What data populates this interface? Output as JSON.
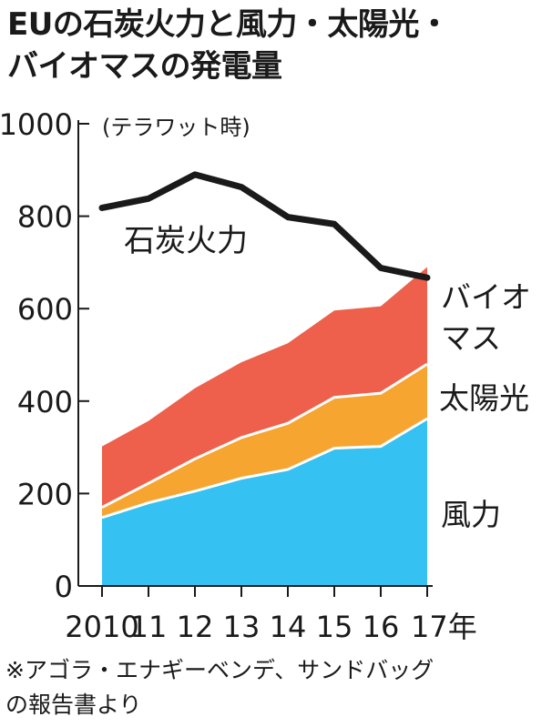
{
  "title_lines": [
    "EUの石炭火力と風力・太陽光・",
    "バイオマスの発電量"
  ],
  "source_lines": [
    "※アゴラ・エナギーベンデ、サンドバッグ",
    "の報告書より"
  ],
  "chart_data": {
    "type": "area",
    "unit_label": "(テラワット時)",
    "x": [
      "2010",
      "11",
      "12",
      "13",
      "14",
      "15",
      "16",
      "17年"
    ],
    "ylim": [
      0,
      1000
    ],
    "yticks": [
      "0",
      "200",
      "400",
      "600",
      "800",
      "1000"
    ],
    "stack_series": [
      {
        "name": "風力",
        "values": [
          148,
          180,
          205,
          233,
          252,
          298,
          302,
          362
        ],
        "color": "#35c1f1"
      },
      {
        "name": "太陽光",
        "values": [
          22,
          42,
          70,
          88,
          100,
          110,
          115,
          118
        ],
        "color": "#f7a531"
      },
      {
        "name": "バイオマス",
        "values": [
          132,
          135,
          153,
          163,
          173,
          188,
          188,
          210
        ],
        "color": "#ee604b"
      }
    ],
    "line_series": {
      "name": "石炭火力",
      "values": [
        818,
        838,
        890,
        863,
        798,
        783,
        688,
        667
      ],
      "color": "#1a1a1a"
    },
    "labels": {
      "coal": "石炭火力",
      "biomass_1": "バイオ",
      "biomass_2": "マス",
      "solar": "太陽光",
      "wind": "風力"
    }
  }
}
